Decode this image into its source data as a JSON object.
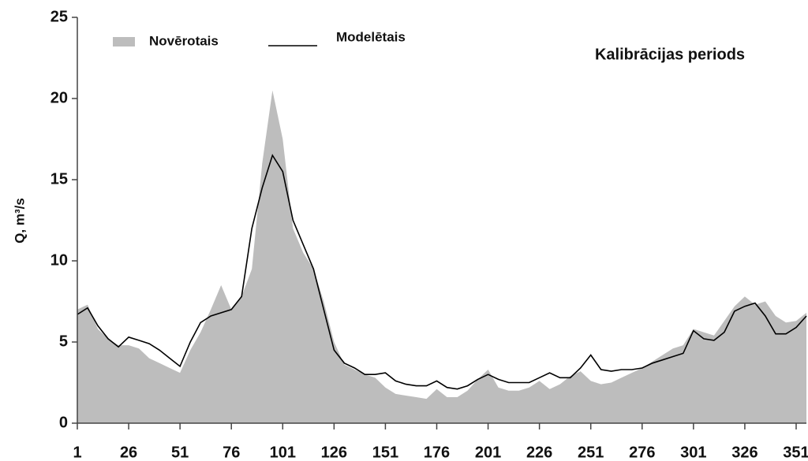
{
  "chart_data": {
    "type": "area-line",
    "ylabel": "Q, m³/s",
    "annotation": "Kalibrācijas periods",
    "x": [
      1,
      6,
      11,
      16,
      21,
      26,
      31,
      36,
      41,
      46,
      51,
      56,
      61,
      66,
      71,
      76,
      81,
      86,
      91,
      96,
      101,
      106,
      111,
      116,
      121,
      126,
      131,
      136,
      141,
      146,
      151,
      156,
      161,
      166,
      171,
      176,
      181,
      186,
      191,
      196,
      201,
      206,
      211,
      216,
      221,
      226,
      231,
      236,
      241,
      246,
      251,
      256,
      261,
      266,
      271,
      276,
      281,
      286,
      291,
      296,
      301,
      306,
      311,
      316,
      321,
      326,
      331,
      336,
      341,
      346,
      351,
      356
    ],
    "series": [
      {
        "name": "Novērotais",
        "color": "#bdbdbd",
        "style": "area",
        "values": [
          7.0,
          7.3,
          5.8,
          5.2,
          4.8,
          4.8,
          4.6,
          4.0,
          3.7,
          3.4,
          3.1,
          4.5,
          5.6,
          7.0,
          8.5,
          7.0,
          7.8,
          9.5,
          16,
          20.5,
          17.5,
          12,
          10.5,
          9.5,
          7.5,
          5.0,
          3.6,
          3.3,
          3.0,
          2.8,
          2.2,
          1.8,
          1.7,
          1.6,
          1.5,
          2.1,
          1.6,
          1.6,
          2.0,
          2.7,
          3.3,
          2.2,
          2.0,
          2.0,
          2.2,
          2.6,
          2.1,
          2.4,
          2.9,
          3.2,
          2.6,
          2.4,
          2.5,
          2.8,
          3.1,
          3.4,
          3.8,
          4.2,
          4.6,
          4.8,
          5.8,
          5.6,
          5.4,
          6.3,
          7.2,
          7.8,
          7.3,
          7.5,
          6.6,
          6.2,
          6.3,
          6.8
        ]
      },
      {
        "name": "Modelētais",
        "color": "#000000",
        "style": "line",
        "values": [
          6.7,
          7.1,
          6.0,
          5.2,
          4.7,
          5.3,
          5.1,
          4.9,
          4.5,
          4.0,
          3.5,
          5.0,
          6.2,
          6.6,
          6.8,
          7.0,
          7.8,
          12.0,
          14.5,
          16.5,
          15.5,
          12.5,
          11.0,
          9.5,
          7.0,
          4.5,
          3.7,
          3.4,
          3.0,
          3.0,
          3.1,
          2.6,
          2.4,
          2.3,
          2.3,
          2.6,
          2.2,
          2.1,
          2.3,
          2.7,
          3.0,
          2.7,
          2.5,
          2.5,
          2.5,
          2.8,
          3.1,
          2.8,
          2.8,
          3.4,
          4.2,
          3.3,
          3.2,
          3.3,
          3.3,
          3.4,
          3.7,
          3.9,
          4.1,
          4.3,
          5.7,
          5.2,
          5.1,
          5.6,
          6.9,
          7.2,
          7.4,
          6.6,
          5.5,
          5.5,
          5.9,
          6.6
        ]
      }
    ],
    "xlim": [
      1,
      356
    ],
    "xticks": [
      1,
      26,
      51,
      76,
      101,
      126,
      151,
      176,
      201,
      226,
      251,
      276,
      301,
      326,
      351
    ],
    "ylim": [
      0,
      25
    ],
    "yticks": [
      0,
      5,
      10,
      15,
      20,
      25
    ]
  }
}
